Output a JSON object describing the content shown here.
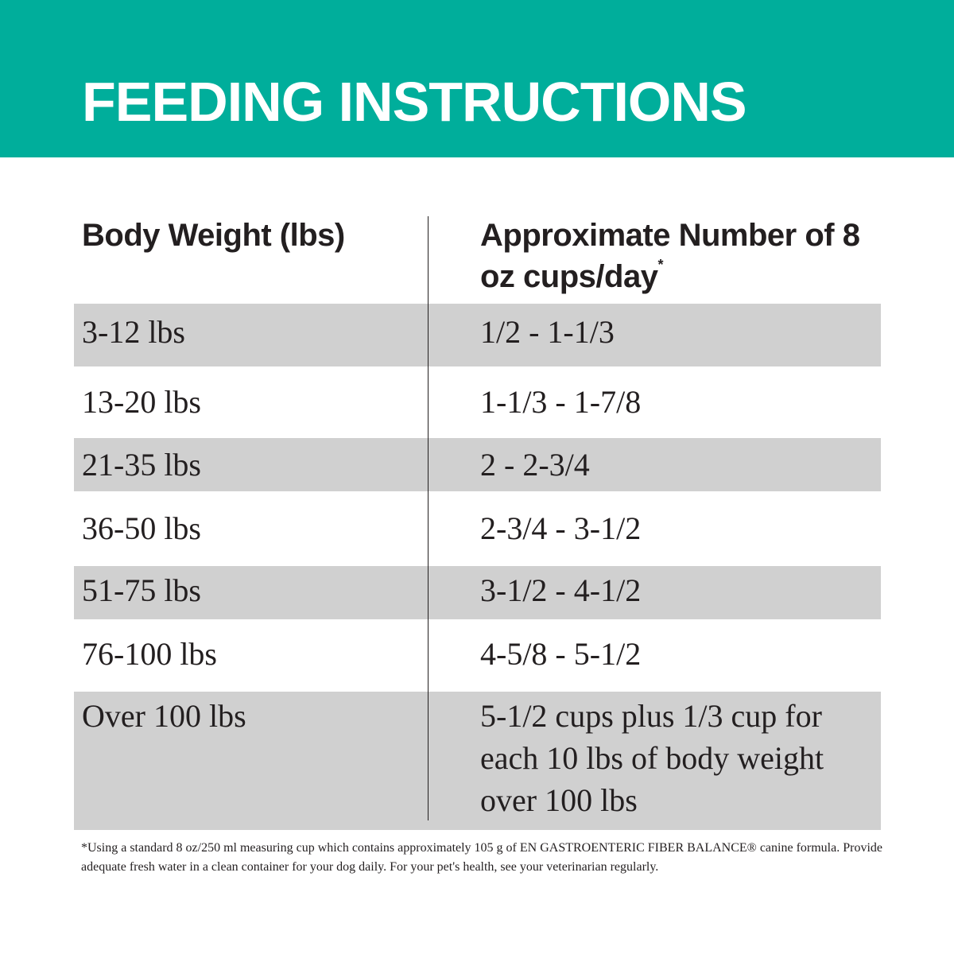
{
  "colors": {
    "banner": "#00ae9b",
    "shaded_row": "#d0d0d0",
    "text": "#231f20"
  },
  "header": {
    "title": "FEEDING INSTRUCTIONS"
  },
  "table": {
    "col1_header": "Body Weight (lbs)",
    "col2_header": "Approximate Number of 8 oz cups/day",
    "col2_header_marker": "*",
    "rows": [
      {
        "weight": "3-12 lbs",
        "cups": "1/2 - 1-1/3",
        "shaded": true
      },
      {
        "weight": "13-20 lbs",
        "cups": "1-1/3 - 1-7/8",
        "shaded": false
      },
      {
        "weight": "21-35 lbs",
        "cups": "2 - 2-3/4",
        "shaded": true
      },
      {
        "weight": "36-50 lbs",
        "cups": "2-3/4 - 3-1/2",
        "shaded": false
      },
      {
        "weight": "51-75 lbs",
        "cups": "3-1/2 - 4-1/2",
        "shaded": true
      },
      {
        "weight": "76-100 lbs",
        "cups": "4-5/8 - 5-1/2",
        "shaded": false
      },
      {
        "weight": "Over 100 lbs",
        "cups": "5-1/2 cups plus 1/3 cup for each 10 lbs of body weight over 100 lbs",
        "shaded": true
      }
    ]
  },
  "footnote": "*Using a standard 8 oz/250 ml measuring cup which contains approximately 105 g of EN GASTROENTERIC FIBER BALANCE® canine formula. Provide adequate fresh water in a clean container for your dog daily. For your pet's health, see your veterinarian regularly."
}
